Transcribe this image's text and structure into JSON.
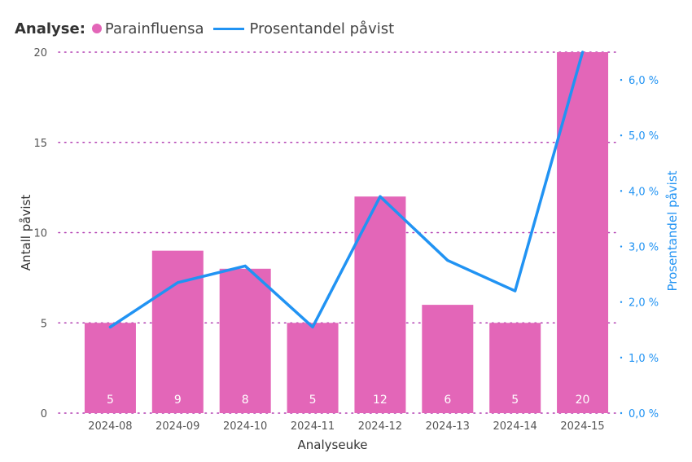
{
  "legend": {
    "title": "Analyse:",
    "items": [
      {
        "label": "Parainfluensa"
      },
      {
        "label": "Prosentandel påvist"
      }
    ]
  },
  "colors": {
    "bar": "#e366b8",
    "line": "#2193f3",
    "grid": "#b23fb2",
    "text": "#555555",
    "right_axis": "#2193f3"
  },
  "chart_data": {
    "type": "bar",
    "categories": [
      "2024-08",
      "2024-09",
      "2024-10",
      "2024-11",
      "2024-12",
      "2024-13",
      "2024-14",
      "2024-15"
    ],
    "series": [
      {
        "name": "Parainfluensa",
        "type": "bar",
        "axis": "left",
        "values": [
          5,
          9,
          8,
          5,
          12,
          6,
          5,
          20
        ],
        "data_labels": [
          "5",
          "9",
          "8",
          "5",
          "12",
          "6",
          "5",
          "20"
        ]
      },
      {
        "name": "Prosentandel påvist",
        "type": "line",
        "axis": "right",
        "values": [
          1.55,
          2.35,
          2.65,
          1.55,
          3.9,
          2.75,
          2.2,
          6.5
        ]
      }
    ],
    "xlabel": "Analyseuke",
    "ylabel": "Antall påvist",
    "y2label": "Prosentandel påvist",
    "ylim": [
      0,
      20
    ],
    "y2lim": [
      0,
      6.5
    ],
    "yticks": [
      "0",
      "5",
      "10",
      "15",
      "20"
    ],
    "y2ticks": [
      "0,0 %",
      "1,0 %",
      "2,0 %",
      "3,0 %",
      "4,0 %",
      "5,0 %",
      "6,0 %"
    ],
    "grid": true,
    "legend_position": "top-left"
  }
}
